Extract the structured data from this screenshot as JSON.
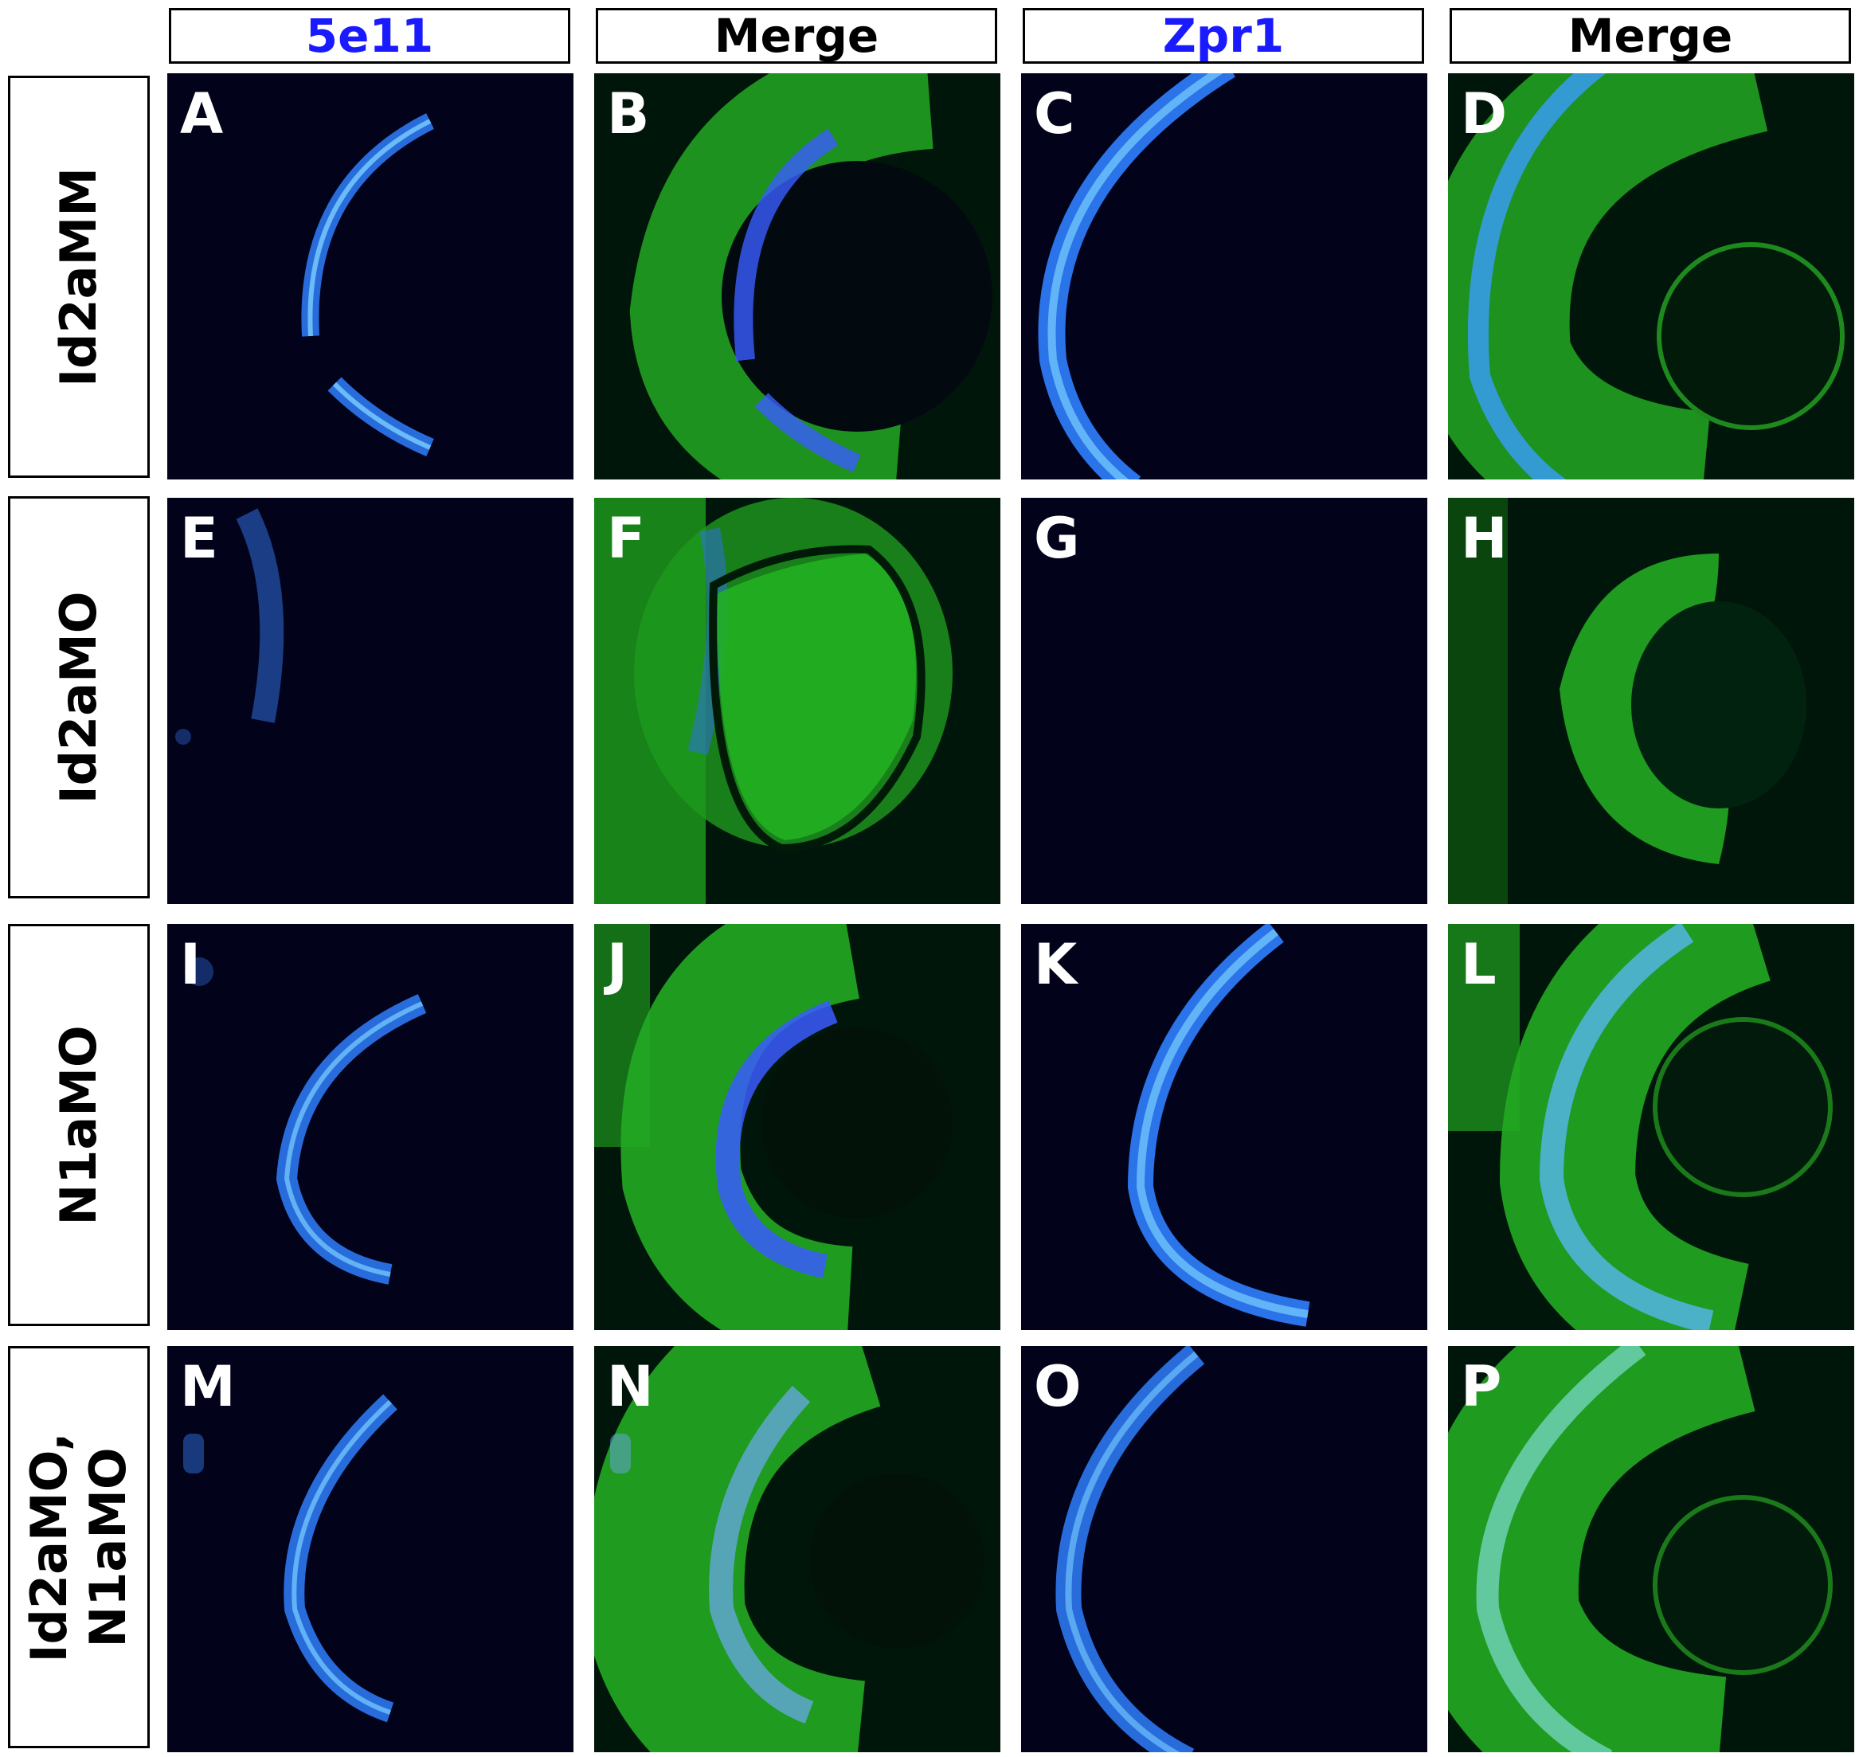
{
  "columns": [
    {
      "label": "5e11",
      "color": "#1a1aff"
    },
    {
      "label": "Merge",
      "color": "#000000"
    },
    {
      "label": "Zpr1",
      "color": "#1a1aff"
    },
    {
      "label": "Merge",
      "color": "#000000"
    }
  ],
  "rows": [
    {
      "label_lines": [
        "Id2aMM"
      ]
    },
    {
      "label_lines": [
        "Id2aMO"
      ]
    },
    {
      "label_lines": [
        "N1aMO"
      ]
    },
    {
      "label_lines": [
        "Id2aMO,",
        "N1aMO"
      ]
    }
  ],
  "panels": [
    {
      "letter": "A",
      "channel": "5e11"
    },
    {
      "letter": "B",
      "channel": "merge"
    },
    {
      "letter": "C",
      "channel": "zpr1"
    },
    {
      "letter": "D",
      "channel": "merge"
    },
    {
      "letter": "E",
      "channel": "5e11"
    },
    {
      "letter": "F",
      "channel": "merge"
    },
    {
      "letter": "G",
      "channel": "zpr1"
    },
    {
      "letter": "H",
      "channel": "merge"
    },
    {
      "letter": "I",
      "channel": "5e11"
    },
    {
      "letter": "J",
      "channel": "merge"
    },
    {
      "letter": "K",
      "channel": "zpr1"
    },
    {
      "letter": "L",
      "channel": "merge"
    },
    {
      "letter": "M",
      "channel": "5e11"
    },
    {
      "letter": "N",
      "channel": "merge"
    },
    {
      "letter": "O",
      "channel": "zpr1"
    },
    {
      "letter": "P",
      "channel": "merge"
    }
  ],
  "colors": {
    "nuclear_stain": "#22b022",
    "marker_stain": "#3a8cff",
    "background": "#02021a",
    "merge_background": "#01160a",
    "panel_letter": "#ffffff"
  }
}
